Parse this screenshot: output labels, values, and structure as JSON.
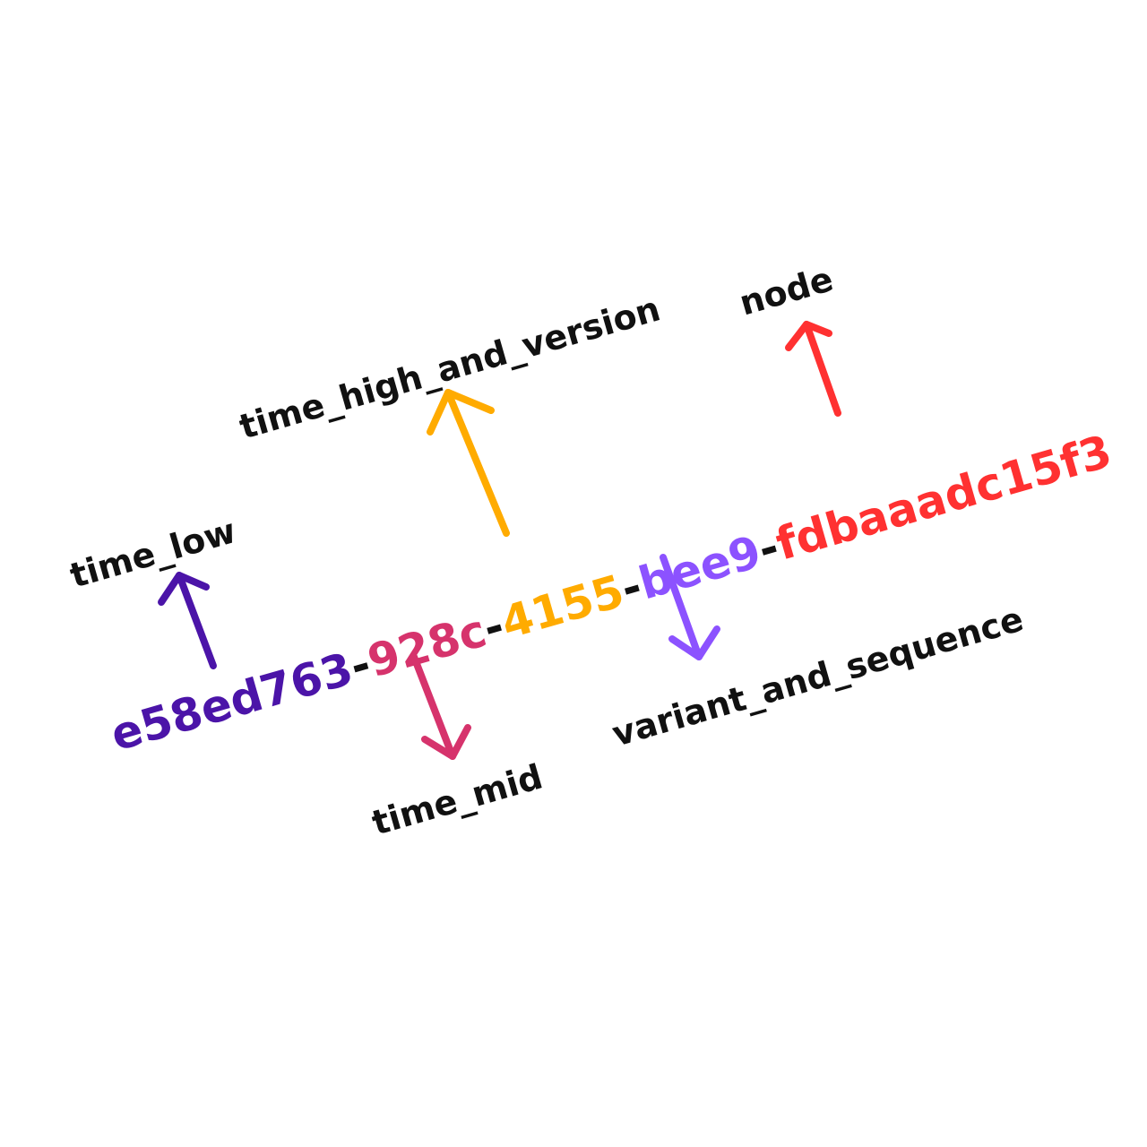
{
  "uuid": {
    "time_low": "e58ed763",
    "time_mid": "928c",
    "time_high_and_version": "4155",
    "variant_and_sequence": "bee9",
    "node": "fdbaaadc15f3",
    "separator": "-"
  },
  "labels": {
    "time_low": "time_low",
    "time_mid": "time_mid",
    "time_high_and_version": "time_high_and_version",
    "variant_and_sequence": "variant_and_sequence",
    "node": "node"
  },
  "colors": {
    "time_low": "#4b14a8",
    "time_mid": "#d6336c",
    "time_high_and_version": "#ffab00",
    "variant_and_sequence": "#8c52ff",
    "node": "#ff3131",
    "separator": "#111111",
    "label": "#111111",
    "background": "#ffffff"
  }
}
